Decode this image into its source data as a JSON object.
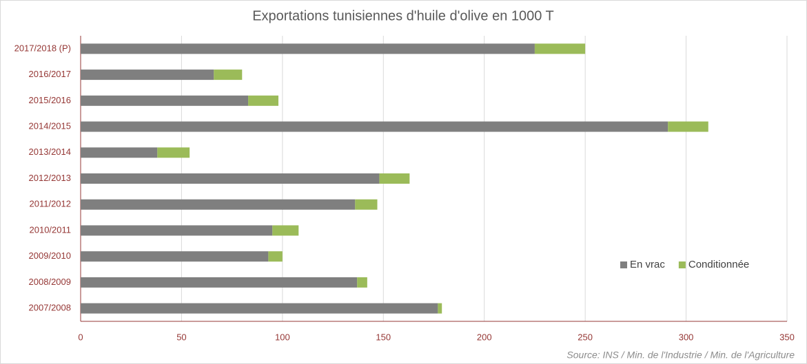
{
  "chart_data": {
    "type": "stacked-barh",
    "title": "Exportations tunisiennes d'huile d'olive en 1000 T",
    "source": "Source: INS / Min. de l'Industrie / Min. de l'Agriculture",
    "categories": [
      "2017/2018 (P)",
      "2016/2017",
      "2015/2016",
      "2014/2015",
      "2013/2014",
      "2012/2013",
      "2011/2012",
      "2010/2011",
      "2009/2010",
      "2008/2009",
      "2007/2008"
    ],
    "series": [
      {
        "name": "En vrac",
        "color": "#7f7f7f",
        "values": [
          225,
          66,
          83,
          291,
          38,
          148,
          136,
          95,
          93,
          137,
          177
        ]
      },
      {
        "name": "Conditionnée",
        "color": "#9bbb59",
        "values": [
          25,
          14,
          15,
          20,
          16,
          15,
          11,
          13,
          7,
          5,
          2
        ]
      }
    ],
    "xlim": [
      0,
      350
    ],
    "xticks": [
      0,
      50,
      100,
      150,
      200,
      250,
      300,
      350
    ],
    "grid": true,
    "legend_position": "right"
  }
}
